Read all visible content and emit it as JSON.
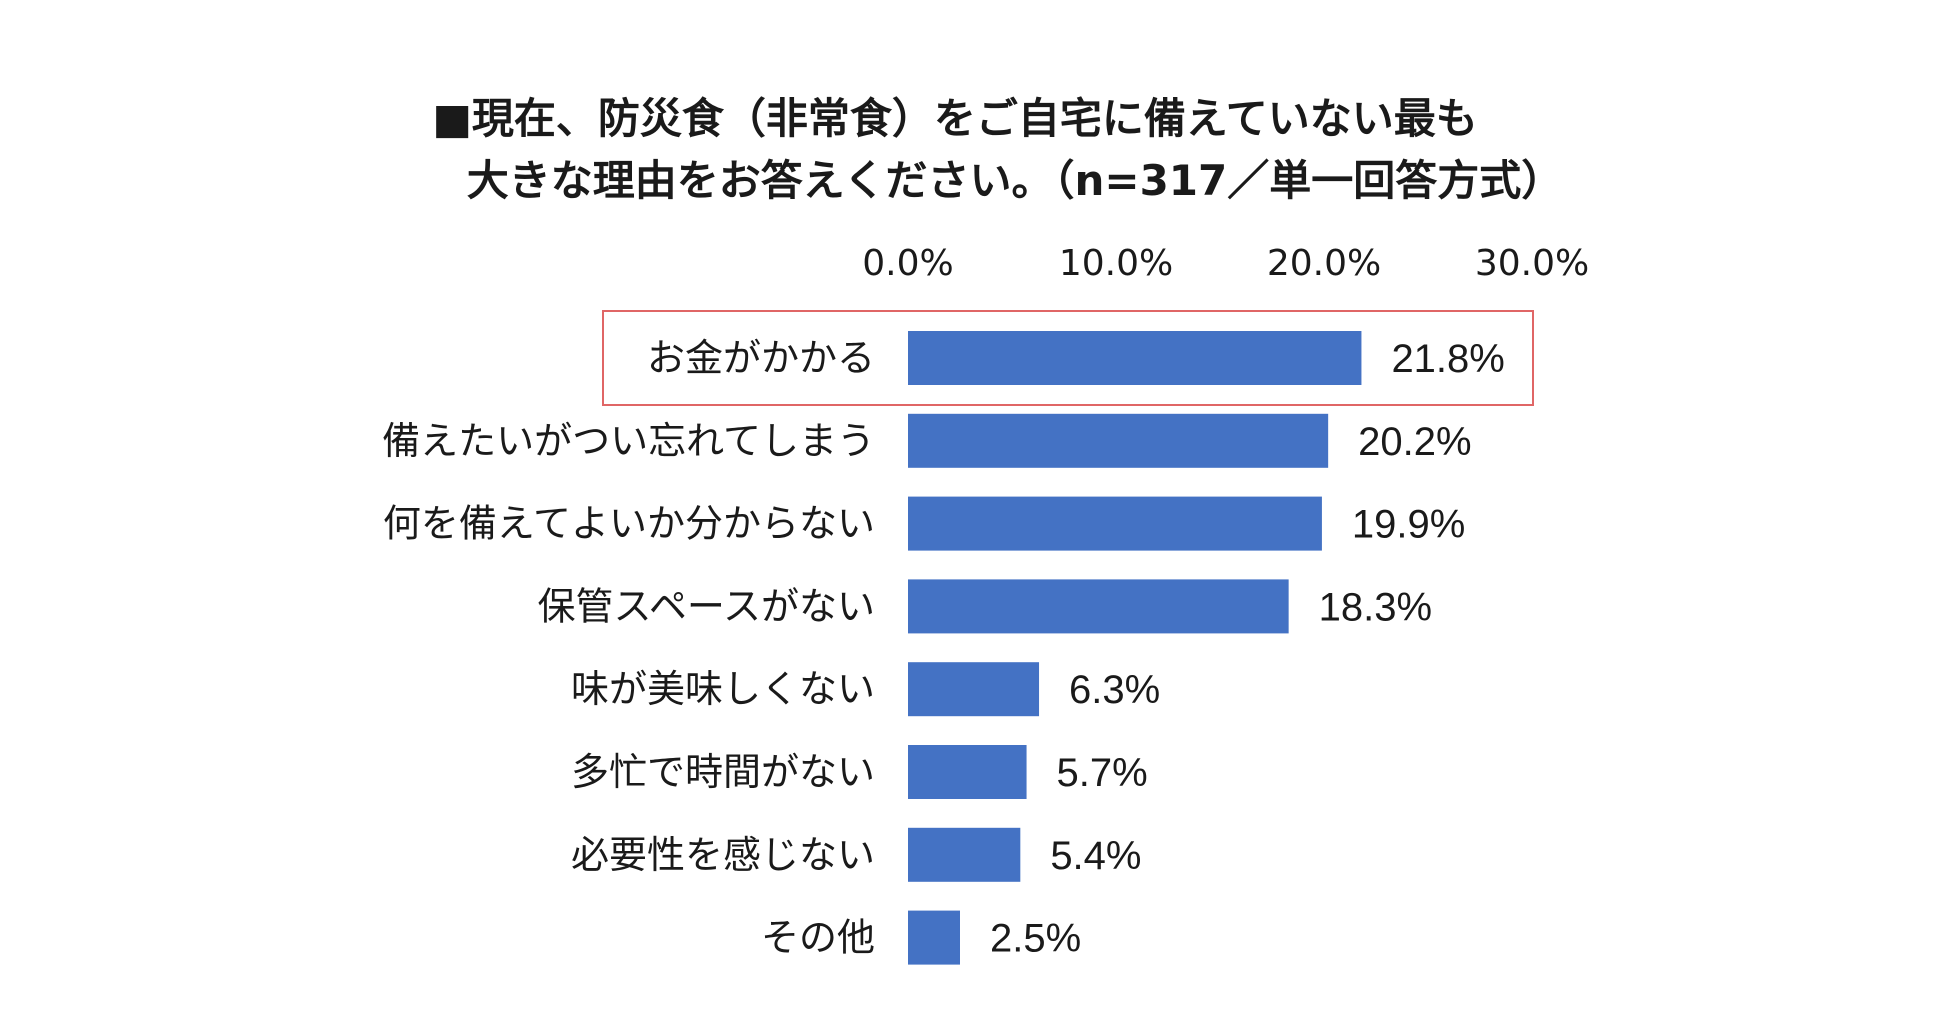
{
  "chart_data": {
    "type": "bar",
    "orientation": "horizontal",
    "title_line1": "■現在、防災食（非常食）をご自宅に備えていない最も",
    "title_line2": "大きな理由をお答えください。（n=317／単一回答方式）",
    "xlabel": "",
    "ylabel": "",
    "xlim": [
      0,
      30
    ],
    "ticks": [
      0,
      10,
      20,
      30
    ],
    "tick_labels": [
      "0.0%",
      "10.0%",
      "20.0%",
      "30.0%"
    ],
    "categories": [
      "お金がかかる",
      "備えたいがつい忘れてしまう",
      "何を備えてよいか分からない",
      "保管スペースがない",
      "味が美味しくない",
      "多忙で時間がない",
      "必要性を感じない",
      "その他"
    ],
    "values": [
      21.8,
      20.2,
      19.9,
      18.3,
      6.3,
      5.7,
      5.4,
      2.5
    ],
    "value_labels": [
      "21.8%",
      "20.2%",
      "19.9%",
      "18.3%",
      "6.3%",
      "5.7%",
      "5.4%",
      "2.5%"
    ],
    "highlighted_category": "お金がかかる",
    "colors": {
      "bar": "#4472C4",
      "highlight_box": "#E06666",
      "text": "#1a1a1a"
    }
  }
}
